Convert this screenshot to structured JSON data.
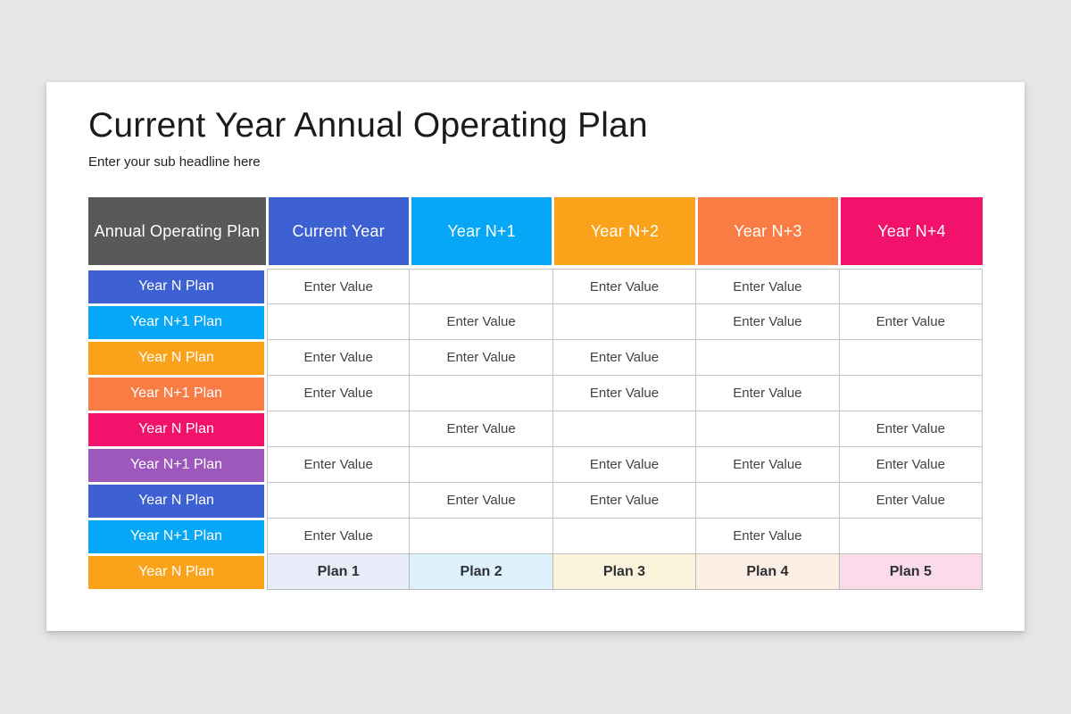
{
  "slide": {
    "title": "Current Year Annual Operating Plan",
    "subtitle": "Enter your sub headline here"
  },
  "colors": {
    "page_bg": "#E8E6E8",
    "card_bg": "#FFFFFF",
    "gray": "#595959",
    "blue": "#3D60D2",
    "light_blue": "#06A7F6",
    "orange": "#FAA21A",
    "deep_orange": "#F97C45",
    "pink": "#F2116B",
    "purple": "#9D57BD",
    "tint_plan1": "#E8ECF8",
    "tint_plan2": "#DDF1FC",
    "tint_plan3": "#FCF3DC",
    "tint_plan4": "#FDEEE3",
    "tint_plan5": "#FBDBE9",
    "grid_line": "#C2C2C2"
  },
  "table": {
    "headers": [
      {
        "label": "Annual Operating Plan",
        "color": "gray"
      },
      {
        "label": "Current Year",
        "color": "blue"
      },
      {
        "label": "Year N+1",
        "color": "light_blue"
      },
      {
        "label": "Year N+2",
        "color": "orange"
      },
      {
        "label": "Year N+3",
        "color": "deep_orange"
      },
      {
        "label": "Year N+4",
        "color": "pink"
      }
    ],
    "rows": [
      {
        "label": "Year N Plan",
        "color": "blue",
        "cells": [
          "Enter Value",
          "",
          "Enter Value",
          "Enter Value",
          ""
        ]
      },
      {
        "label": "Year N+1 Plan",
        "color": "light_blue",
        "cells": [
          "",
          "Enter Value",
          "",
          "Enter Value",
          "Enter Value"
        ]
      },
      {
        "label": "Year N Plan",
        "color": "orange",
        "cells": [
          "Enter Value",
          "Enter Value",
          "Enter Value",
          "",
          ""
        ]
      },
      {
        "label": "Year N+1 Plan",
        "color": "deep_orange",
        "cells": [
          "Enter Value",
          "",
          "Enter Value",
          "Enter Value",
          ""
        ]
      },
      {
        "label": "Year N Plan",
        "color": "pink",
        "cells": [
          "",
          "Enter Value",
          "",
          "",
          "Enter Value"
        ]
      },
      {
        "label": "Year N+1 Plan",
        "color": "purple",
        "cells": [
          "Enter Value",
          "",
          "Enter Value",
          "Enter Value",
          "Enter Value"
        ]
      },
      {
        "label": "Year N Plan",
        "color": "blue",
        "cells": [
          "",
          "Enter Value",
          "Enter Value",
          "",
          "Enter Value"
        ]
      },
      {
        "label": "Year N+1 Plan",
        "color": "light_blue",
        "cells": [
          "Enter Value",
          "",
          "",
          "Enter Value",
          ""
        ]
      }
    ],
    "footer_row": {
      "label": "Year N Plan",
      "color": "orange",
      "plans": [
        {
          "label": "Plan 1",
          "tint": "tint_plan1"
        },
        {
          "label": "Plan 2",
          "tint": "tint_plan2"
        },
        {
          "label": "Plan 3",
          "tint": "tint_plan3"
        },
        {
          "label": "Plan 4",
          "tint": "tint_plan4"
        },
        {
          "label": "Plan 5",
          "tint": "tint_plan5"
        }
      ]
    }
  }
}
